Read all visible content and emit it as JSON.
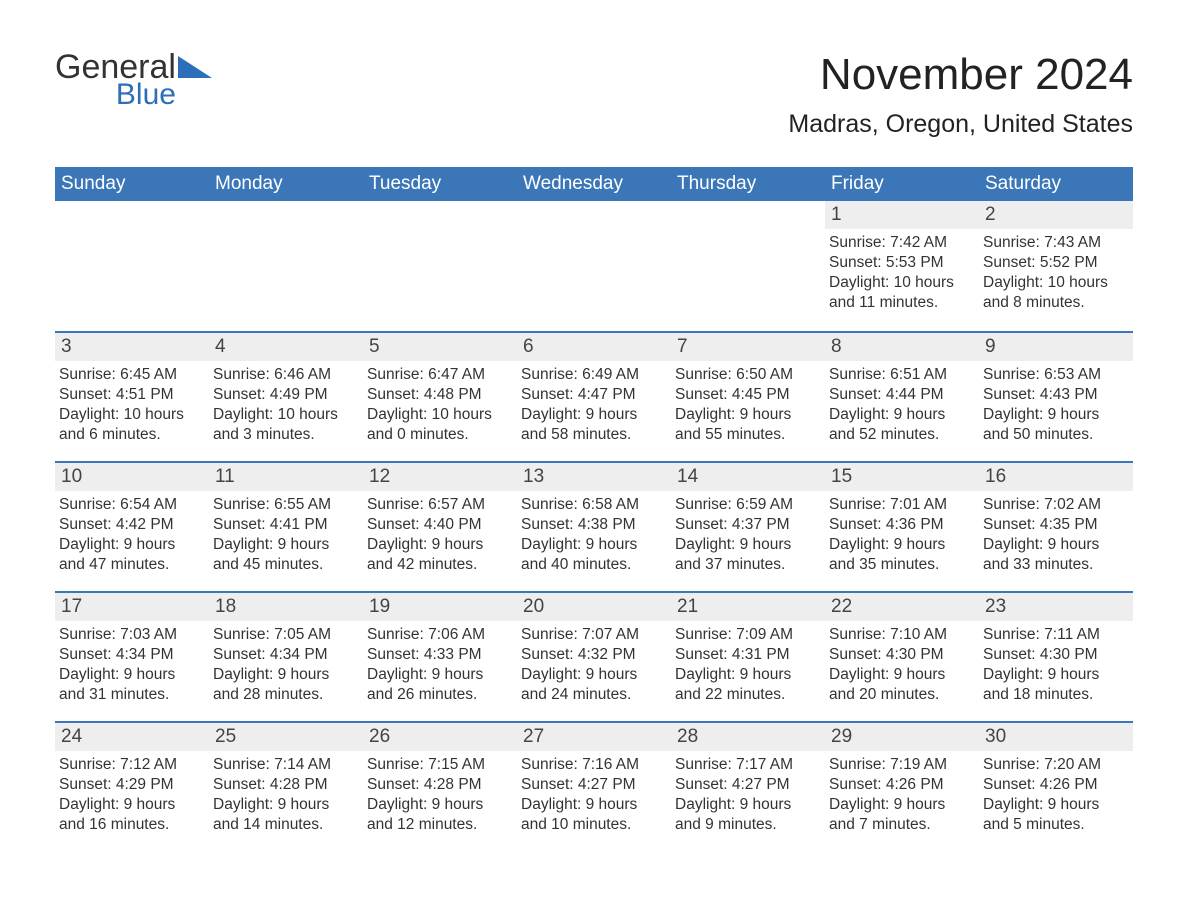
{
  "logo": {
    "word1": "General",
    "word2": "Blue",
    "text_color": "#333333",
    "accent_color": "#2c6fb8"
  },
  "title": {
    "month": "November 2024",
    "location": "Madras, Oregon, United States"
  },
  "colors": {
    "header_bg": "#3b77b8",
    "header_text": "#ffffff",
    "week_divider": "#3b77b8",
    "daynum_bg": "#eeeeee",
    "body_bg": "#ffffff",
    "text": "#333333"
  },
  "typography": {
    "month_title_fontsize": 44,
    "location_fontsize": 25,
    "day_header_fontsize": 19,
    "daynum_fontsize": 19,
    "body_fontsize": 15.5
  },
  "day_names": [
    "Sunday",
    "Monday",
    "Tuesday",
    "Wednesday",
    "Thursday",
    "Friday",
    "Saturday"
  ],
  "weeks": [
    [
      null,
      null,
      null,
      null,
      null,
      {
        "n": "1",
        "sunrise": "Sunrise: 7:42 AM",
        "sunset": "Sunset: 5:53 PM",
        "dl1": "Daylight: 10 hours",
        "dl2": "and 11 minutes."
      },
      {
        "n": "2",
        "sunrise": "Sunrise: 7:43 AM",
        "sunset": "Sunset: 5:52 PM",
        "dl1": "Daylight: 10 hours",
        "dl2": "and 8 minutes."
      }
    ],
    [
      {
        "n": "3",
        "sunrise": "Sunrise: 6:45 AM",
        "sunset": "Sunset: 4:51 PM",
        "dl1": "Daylight: 10 hours",
        "dl2": "and 6 minutes."
      },
      {
        "n": "4",
        "sunrise": "Sunrise: 6:46 AM",
        "sunset": "Sunset: 4:49 PM",
        "dl1": "Daylight: 10 hours",
        "dl2": "and 3 minutes."
      },
      {
        "n": "5",
        "sunrise": "Sunrise: 6:47 AM",
        "sunset": "Sunset: 4:48 PM",
        "dl1": "Daylight: 10 hours",
        "dl2": "and 0 minutes."
      },
      {
        "n": "6",
        "sunrise": "Sunrise: 6:49 AM",
        "sunset": "Sunset: 4:47 PM",
        "dl1": "Daylight: 9 hours",
        "dl2": "and 58 minutes."
      },
      {
        "n": "7",
        "sunrise": "Sunrise: 6:50 AM",
        "sunset": "Sunset: 4:45 PM",
        "dl1": "Daylight: 9 hours",
        "dl2": "and 55 minutes."
      },
      {
        "n": "8",
        "sunrise": "Sunrise: 6:51 AM",
        "sunset": "Sunset: 4:44 PM",
        "dl1": "Daylight: 9 hours",
        "dl2": "and 52 minutes."
      },
      {
        "n": "9",
        "sunrise": "Sunrise: 6:53 AM",
        "sunset": "Sunset: 4:43 PM",
        "dl1": "Daylight: 9 hours",
        "dl2": "and 50 minutes."
      }
    ],
    [
      {
        "n": "10",
        "sunrise": "Sunrise: 6:54 AM",
        "sunset": "Sunset: 4:42 PM",
        "dl1": "Daylight: 9 hours",
        "dl2": "and 47 minutes."
      },
      {
        "n": "11",
        "sunrise": "Sunrise: 6:55 AM",
        "sunset": "Sunset: 4:41 PM",
        "dl1": "Daylight: 9 hours",
        "dl2": "and 45 minutes."
      },
      {
        "n": "12",
        "sunrise": "Sunrise: 6:57 AM",
        "sunset": "Sunset: 4:40 PM",
        "dl1": "Daylight: 9 hours",
        "dl2": "and 42 minutes."
      },
      {
        "n": "13",
        "sunrise": "Sunrise: 6:58 AM",
        "sunset": "Sunset: 4:38 PM",
        "dl1": "Daylight: 9 hours",
        "dl2": "and 40 minutes."
      },
      {
        "n": "14",
        "sunrise": "Sunrise: 6:59 AM",
        "sunset": "Sunset: 4:37 PM",
        "dl1": "Daylight: 9 hours",
        "dl2": "and 37 minutes."
      },
      {
        "n": "15",
        "sunrise": "Sunrise: 7:01 AM",
        "sunset": "Sunset: 4:36 PM",
        "dl1": "Daylight: 9 hours",
        "dl2": "and 35 minutes."
      },
      {
        "n": "16",
        "sunrise": "Sunrise: 7:02 AM",
        "sunset": "Sunset: 4:35 PM",
        "dl1": "Daylight: 9 hours",
        "dl2": "and 33 minutes."
      }
    ],
    [
      {
        "n": "17",
        "sunrise": "Sunrise: 7:03 AM",
        "sunset": "Sunset: 4:34 PM",
        "dl1": "Daylight: 9 hours",
        "dl2": "and 31 minutes."
      },
      {
        "n": "18",
        "sunrise": "Sunrise: 7:05 AM",
        "sunset": "Sunset: 4:34 PM",
        "dl1": "Daylight: 9 hours",
        "dl2": "and 28 minutes."
      },
      {
        "n": "19",
        "sunrise": "Sunrise: 7:06 AM",
        "sunset": "Sunset: 4:33 PM",
        "dl1": "Daylight: 9 hours",
        "dl2": "and 26 minutes."
      },
      {
        "n": "20",
        "sunrise": "Sunrise: 7:07 AM",
        "sunset": "Sunset: 4:32 PM",
        "dl1": "Daylight: 9 hours",
        "dl2": "and 24 minutes."
      },
      {
        "n": "21",
        "sunrise": "Sunrise: 7:09 AM",
        "sunset": "Sunset: 4:31 PM",
        "dl1": "Daylight: 9 hours",
        "dl2": "and 22 minutes."
      },
      {
        "n": "22",
        "sunrise": "Sunrise: 7:10 AM",
        "sunset": "Sunset: 4:30 PM",
        "dl1": "Daylight: 9 hours",
        "dl2": "and 20 minutes."
      },
      {
        "n": "23",
        "sunrise": "Sunrise: 7:11 AM",
        "sunset": "Sunset: 4:30 PM",
        "dl1": "Daylight: 9 hours",
        "dl2": "and 18 minutes."
      }
    ],
    [
      {
        "n": "24",
        "sunrise": "Sunrise: 7:12 AM",
        "sunset": "Sunset: 4:29 PM",
        "dl1": "Daylight: 9 hours",
        "dl2": "and 16 minutes."
      },
      {
        "n": "25",
        "sunrise": "Sunrise: 7:14 AM",
        "sunset": "Sunset: 4:28 PM",
        "dl1": "Daylight: 9 hours",
        "dl2": "and 14 minutes."
      },
      {
        "n": "26",
        "sunrise": "Sunrise: 7:15 AM",
        "sunset": "Sunset: 4:28 PM",
        "dl1": "Daylight: 9 hours",
        "dl2": "and 12 minutes."
      },
      {
        "n": "27",
        "sunrise": "Sunrise: 7:16 AM",
        "sunset": "Sunset: 4:27 PM",
        "dl1": "Daylight: 9 hours",
        "dl2": "and 10 minutes."
      },
      {
        "n": "28",
        "sunrise": "Sunrise: 7:17 AM",
        "sunset": "Sunset: 4:27 PM",
        "dl1": "Daylight: 9 hours",
        "dl2": "and 9 minutes."
      },
      {
        "n": "29",
        "sunrise": "Sunrise: 7:19 AM",
        "sunset": "Sunset: 4:26 PM",
        "dl1": "Daylight: 9 hours",
        "dl2": "and 7 minutes."
      },
      {
        "n": "30",
        "sunrise": "Sunrise: 7:20 AM",
        "sunset": "Sunset: 4:26 PM",
        "dl1": "Daylight: 9 hours",
        "dl2": "and 5 minutes."
      }
    ]
  ]
}
